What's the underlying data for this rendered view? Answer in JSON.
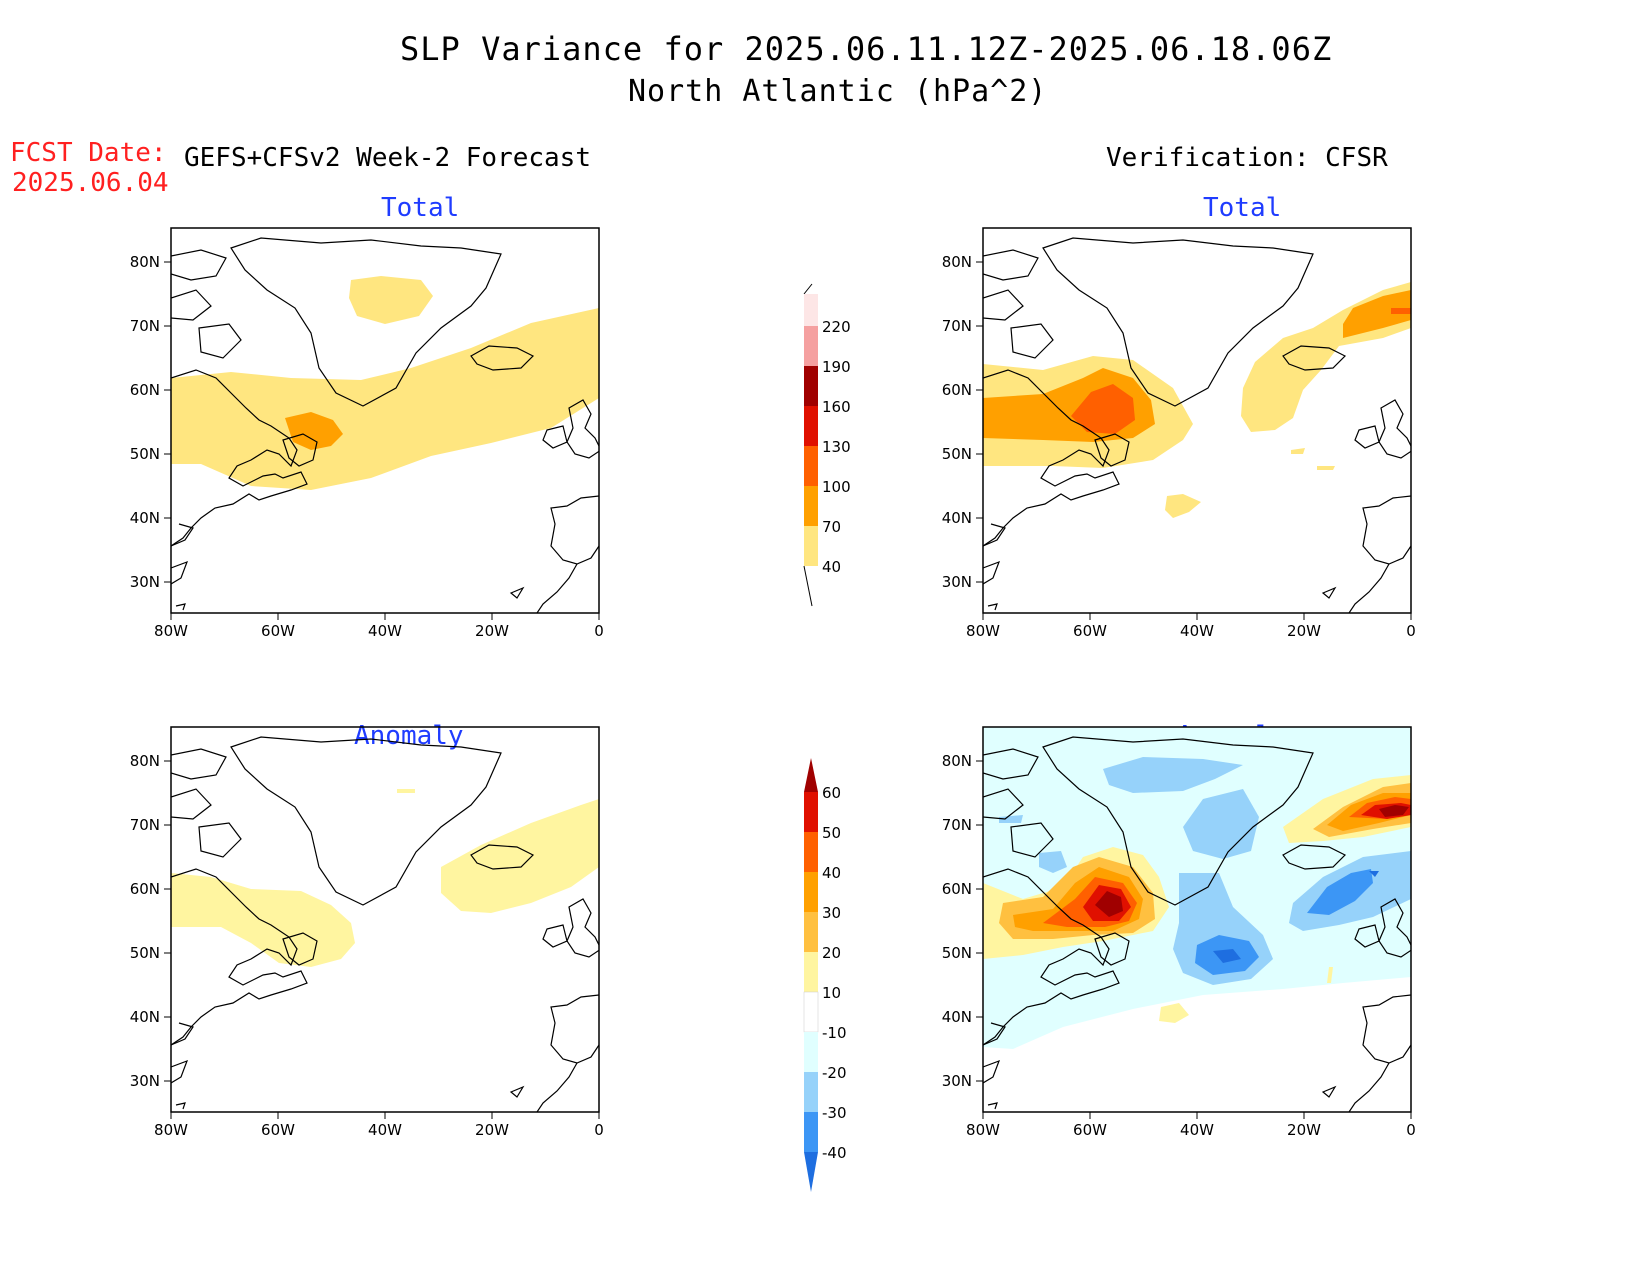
{
  "header": {
    "title": "SLP Variance for 2025.06.11.12Z-2025.06.18.06Z",
    "subtitle": "North Atlantic (hPa^2)",
    "fcst_label": "FCST Date:",
    "fcst_date": "2025.06.04",
    "left_column_title": "GEFS+CFSv2 Week-2 Forecast",
    "right_column_title": "Verification: CFSR"
  },
  "panels": {
    "forecast_total": "Total",
    "verification_total": "Total",
    "forecast_anomaly": "Anomaly",
    "verification_anomaly": "Anomaly"
  },
  "axes": {
    "lon_ticks": [
      "80W",
      "60W",
      "40W",
      "20W",
      "0"
    ],
    "lat_ticks": [
      "80N",
      "70N",
      "60N",
      "50N",
      "40N",
      "30N"
    ]
  },
  "colorbars": {
    "total": {
      "levels": [
        "40",
        "70",
        "100",
        "130",
        "160",
        "190",
        "220"
      ],
      "colors": [
        "#ffe680",
        "#ffa000",
        "#ff6000",
        "#e01000",
        "#a00000",
        "#f5a0a0",
        "#fde6e6"
      ]
    },
    "anomaly": {
      "levels": [
        "60",
        "50",
        "40",
        "30",
        "20",
        "10",
        "-10",
        "-20",
        "-30",
        "-40"
      ],
      "colors": [
        "#a00000",
        "#e01000",
        "#ff6000",
        "#ffa000",
        "#ffc040",
        "#fff5a0",
        "#ffffff",
        "#e0ffff",
        "#96d2fa",
        "#3c96f5",
        "#1e6ee0"
      ]
    }
  },
  "colors": {
    "title_blue": "#1f3cff",
    "fcst_red": "#ff2020"
  }
}
